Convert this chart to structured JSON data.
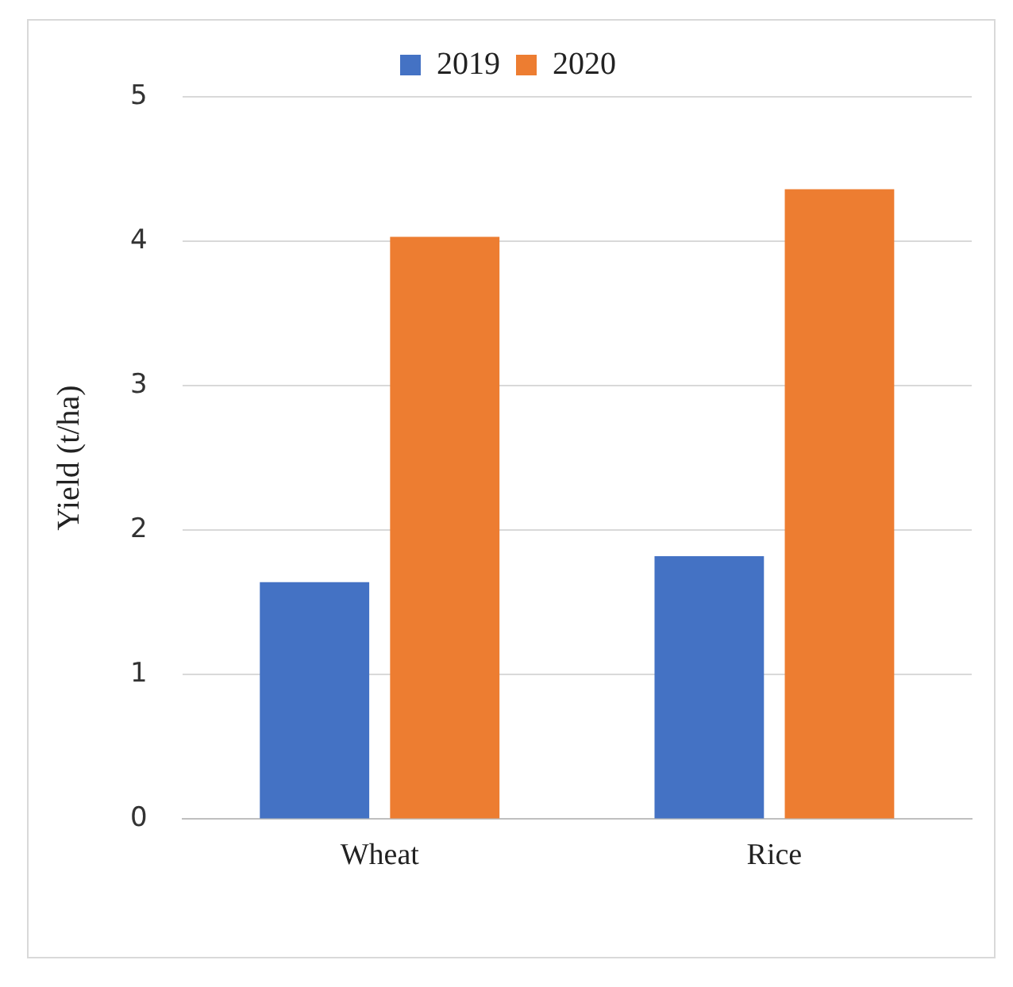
{
  "chart_data": {
    "type": "bar",
    "ylabel": "Yield (t/ha)",
    "categories": [
      "Wheat",
      "Rice"
    ],
    "series": [
      {
        "name": "2019",
        "color": "#4472c4",
        "values": [
          1.64,
          1.82
        ]
      },
      {
        "name": "2020",
        "color": "#ed7d31",
        "values": [
          4.03,
          4.36
        ]
      }
    ],
    "ylim": [
      0,
      5
    ],
    "yticks": [
      0,
      1,
      2,
      3,
      4,
      5
    ],
    "grid": "y",
    "legend": "top"
  }
}
